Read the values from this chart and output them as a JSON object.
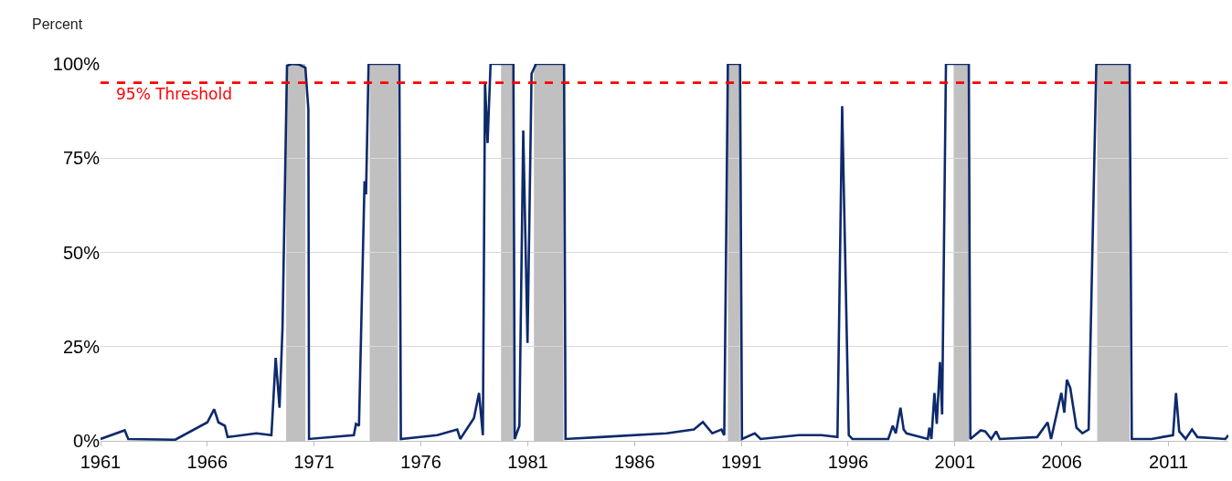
{
  "chart_data": {
    "type": "line",
    "ylabel": "Percent",
    "x": [
      1961.0,
      1962.13,
      1962.3,
      1964.5,
      1966.0,
      1966.32,
      1966.52,
      1966.82,
      1966.95,
      1968.3,
      1969.0,
      1969.2,
      1969.38,
      1969.52,
      1969.73,
      1969.95,
      1970.3,
      1970.59,
      1970.73,
      1970.76,
      1972.86,
      1972.96,
      1973.1,
      1973.36,
      1973.43,
      1973.55,
      1974.99,
      1975.06,
      1976.77,
      1977.7,
      1977.84,
      1978.48,
      1978.72,
      1978.9,
      1979.0,
      1979.12,
      1979.26,
      1980.33,
      1980.39,
      1980.61,
      1980.79,
      1980.99,
      1981.18,
      1981.39,
      1982.7,
      1982.77,
      1984.4,
      1987.5,
      1988.78,
      1989.2,
      1989.64,
      1990.07,
      1990.2,
      1990.37,
      1990.94,
      1991.03,
      1991.63,
      1991.9,
      1993.69,
      1994.75,
      1995.5,
      1995.72,
      1996.03,
      1996.2,
      1997.88,
      1998.09,
      1998.23,
      1998.45,
      1998.6,
      1998.73,
      1999.73,
      1999.8,
      1999.9,
      2000.04,
      2000.15,
      2000.3,
      2000.4,
      2000.58,
      2001.65,
      2001.72,
      2002.21,
      2002.42,
      2002.7,
      2002.93,
      2003.1,
      2004.85,
      2005.34,
      2005.5,
      2005.98,
      2006.12,
      2006.24,
      2006.4,
      2006.69,
      2006.97,
      2007.26,
      2007.62,
      2009.18,
      2009.28,
      2010.2,
      2011.21,
      2011.35,
      2011.5,
      2011.8,
      2012.1,
      2012.35,
      2013.66,
      2013.8
    ],
    "series": [
      {
        "color": "#0d2a6b",
        "values": [
          0.5,
          2.8,
          0.5,
          0.3,
          4.9,
          8.4,
          4.9,
          4,
          1,
          2,
          1.5,
          22,
          8.8,
          30,
          99.5,
          100,
          99.8,
          99,
          88,
          0.5,
          1.5,
          4.5,
          4,
          68.9,
          65.4,
          100,
          100,
          0.5,
          1.5,
          3,
          0.5,
          6,
          12.7,
          1.5,
          95.2,
          79,
          100,
          100,
          0.5,
          4,
          82.3,
          26,
          97.4,
          100,
          100,
          0.5,
          1,
          2,
          3,
          5,
          2,
          3,
          1.5,
          100,
          100,
          0.5,
          2,
          0.5,
          1.5,
          1.5,
          1,
          88.8,
          1.5,
          0.5,
          0.5,
          4,
          2,
          8.8,
          3,
          2,
          0.5,
          3.5,
          0.5,
          12.7,
          4.5,
          20.9,
          7,
          100,
          100,
          0.5,
          2.8,
          2.5,
          0.5,
          2.5,
          0.5,
          1,
          4.9,
          0.5,
          12.7,
          7.5,
          16.2,
          14,
          3.5,
          2,
          3,
          100,
          100,
          0.5,
          0.5,
          1.5,
          12.7,
          2.5,
          0.5,
          3,
          1,
          0.5,
          1.5
        ]
      }
    ],
    "xlim": [
      1961,
      2013.8
    ],
    "xticks": [
      1961,
      1966,
      1971,
      1976,
      1981,
      1986,
      1991,
      1996,
      2001,
      2006,
      2011
    ],
    "ylim": [
      0,
      100
    ],
    "yticks": [
      {
        "value": 0,
        "label": "0%"
      },
      {
        "value": 25,
        "label": "25%"
      },
      {
        "value": 50,
        "label": "50%"
      },
      {
        "value": 75,
        "label": "75%"
      },
      {
        "value": 100,
        "label": "100%"
      }
    ],
    "grid": "y",
    "line_style": "solid",
    "marker": "none",
    "ref_lines": [
      {
        "axis": "y",
        "value": 95,
        "label": "95% Threshold",
        "color": "#ff0000",
        "line_style": "dashed"
      }
    ],
    "bands": [
      {
        "axis": "x",
        "from": 1969.69,
        "to": 1970.59,
        "color": "#c0c0c0"
      },
      {
        "axis": "x",
        "from": 1973.6,
        "to": 1974.92,
        "color": "#c0c0c0"
      },
      {
        "axis": "x",
        "from": 1979.75,
        "to": 1980.33,
        "color": "#c0c0c0"
      },
      {
        "axis": "x",
        "from": 1981.29,
        "to": 1982.67,
        "color": "#c0c0c0"
      },
      {
        "axis": "x",
        "from": 1990.37,
        "to": 1990.94,
        "color": "#c0c0c0"
      },
      {
        "axis": "x",
        "from": 2000.94,
        "to": 2001.65,
        "color": "#c0c0c0"
      },
      {
        "axis": "x",
        "from": 2007.66,
        "to": 2009.18,
        "color": "#c0c0c0"
      }
    ]
  }
}
